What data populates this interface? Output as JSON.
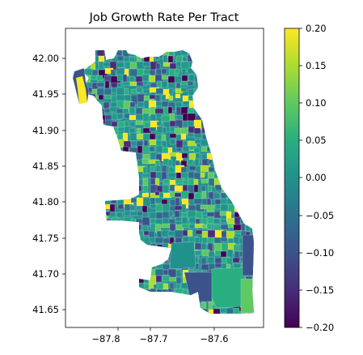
{
  "chart_data": {
    "type": "choropleth",
    "title": "Job Growth Rate Per Tract",
    "x_ticks": [
      "−87.8",
      "−87.7",
      "−87.6"
    ],
    "x_tick_values": [
      -87.8,
      -87.7,
      -87.6
    ],
    "y_ticks": [
      "42.00",
      "41.95",
      "41.90",
      "41.85",
      "41.80",
      "41.75",
      "41.70",
      "41.65"
    ],
    "y_tick_values": [
      42.0,
      41.95,
      41.9,
      41.85,
      41.8,
      41.75,
      41.7,
      41.65
    ],
    "xlim": [
      -87.875,
      -87.555
    ],
    "ylim": [
      41.625,
      42.04
    ],
    "colorbar": {
      "colormap": "viridis",
      "range": [
        -0.2,
        0.2
      ],
      "ticks": [
        "0.20",
        "0.15",
        "0.10",
        "0.05",
        "0.00",
        "−0.05",
        "−0.10",
        "−0.15",
        "−0.20"
      ],
      "tick_values": [
        0.2,
        0.15,
        0.1,
        0.05,
        0.0,
        -0.05,
        -0.1,
        -0.15,
        -0.2
      ]
    },
    "region": "Chicago census tracts",
    "dominant_value": 0.03,
    "colors": {
      "dominant": "#21918c",
      "low": "#440154",
      "high": "#fde725",
      "dark_blue": "#3b528b",
      "teal_green": "#28ae80"
    }
  }
}
